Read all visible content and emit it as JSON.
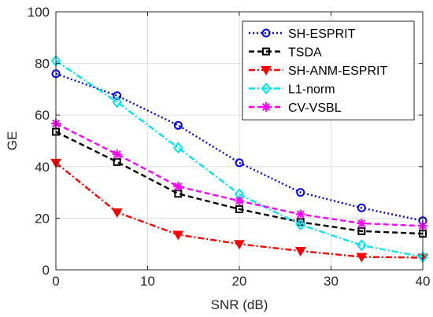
{
  "chart_data": {
    "type": "line",
    "xlabel": "SNR (dB)",
    "ylabel": "GE",
    "xlim": [
      0,
      40
    ],
    "ylim": [
      0,
      100
    ],
    "xticks": [
      0,
      10,
      20,
      30,
      40
    ],
    "yticks": [
      0,
      20,
      40,
      60,
      80,
      100
    ],
    "grid": true,
    "legend_position": "top-right",
    "x": [
      0,
      6.67,
      13.33,
      20,
      26.67,
      33.33,
      40
    ],
    "series": [
      {
        "name": "SH-ESPRIT",
        "values": [
          76,
          67.5,
          56,
          41.5,
          30,
          24,
          19
        ],
        "color": "#0000ff",
        "dash": "2,3",
        "marker": "circle"
      },
      {
        "name": "TSDA",
        "values": [
          53.5,
          41.8,
          29.5,
          23.5,
          18.5,
          15,
          14
        ],
        "color": "#000000",
        "dash": "7,4",
        "marker": "square"
      },
      {
        "name": "SH-ANM-ESPRIT",
        "values": [
          41.5,
          22.3,
          13.6,
          10,
          7.3,
          5,
          4.7
        ],
        "color": "#ff0000",
        "dash": "8,3,2,3",
        "marker": "triangle-down"
      },
      {
        "name": "L1-norm",
        "values": [
          81,
          65,
          47.3,
          29.3,
          17.5,
          9.5,
          5
        ],
        "color": "#00e5ee",
        "dash": "8,3,2,3",
        "marker": "diamond"
      },
      {
        "name": "CV-VSBL",
        "values": [
          56.7,
          44.8,
          32.3,
          26.7,
          21.5,
          18,
          17
        ],
        "color": "#ff00ff",
        "dash": "7,4",
        "marker": "star"
      }
    ]
  }
}
